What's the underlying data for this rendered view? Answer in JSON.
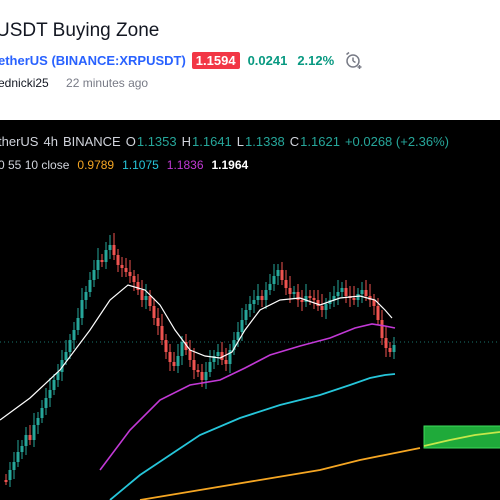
{
  "idea": {
    "title": "USDT Buying Zone",
    "symbol_link": "etherUS (BINANCE:XRPUSDT)",
    "price_badge": "1.1594",
    "change": "0.0241",
    "change_pct": "2.12%",
    "author": "ednicki25",
    "time_ago": "22 minutes ago"
  },
  "legend": {
    "symbol": "therUS",
    "interval": "4h",
    "exchange": "BINANCE",
    "o_label": "O",
    "o_value": "1.1353",
    "h_label": "H",
    "h_value": "1.1641",
    "l_label": "L",
    "l_value": "1.1338",
    "c_label": "C",
    "c_value": "1.1621",
    "change": "+0.0268 (+2.36%)"
  },
  "indicator": {
    "params": "0 55 10 close",
    "v1": "0.9789",
    "v2": "1.1075",
    "v3": "1.1836",
    "v4": "1.1964"
  },
  "colors": {
    "up": "#26a69a",
    "down": "#ef5350",
    "price_badge": "#f23645",
    "sma_short": "#ffffff",
    "sma_mid": "#c239d6",
    "sma_long": "#26c6da",
    "sma_longest": "#f5a623",
    "zone": "#1faa3a",
    "zone_line": "#c5e84a"
  },
  "icons": {
    "alert": "alarm-clock-plus-icon"
  }
}
